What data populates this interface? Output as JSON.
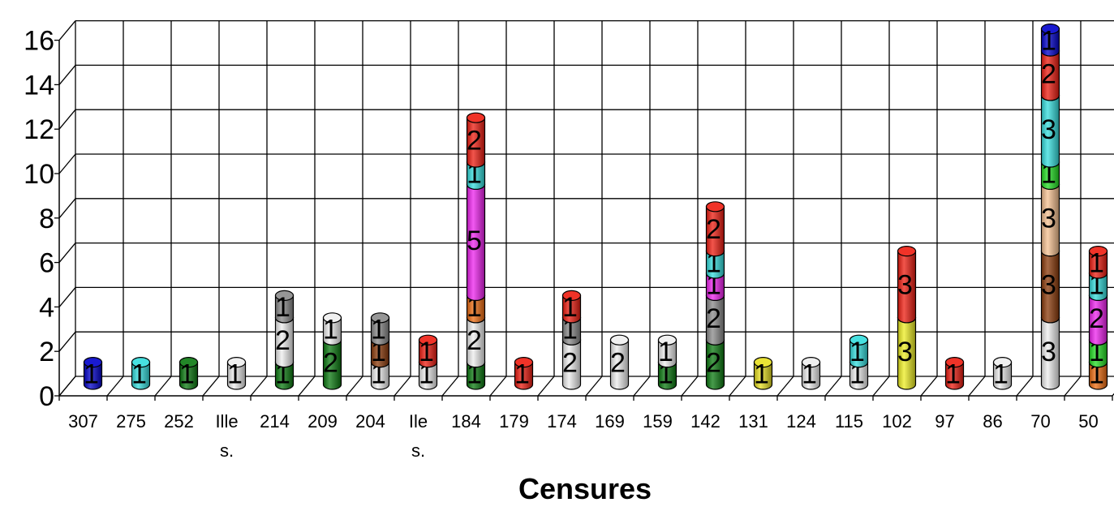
{
  "chart_data": {
    "type": "bar",
    "stacked": true,
    "style": "3d-cylinder",
    "title": "",
    "xlabel": "Censures",
    "ylabel": "",
    "ylim": [
      0,
      16
    ],
    "yticks": [
      0,
      2,
      4,
      6,
      8,
      10,
      12,
      14,
      16
    ],
    "grid": true,
    "legend": "none",
    "categories": [
      {
        "label": "307"
      },
      {
        "label": "275"
      },
      {
        "label": "252"
      },
      {
        "label": "Ille",
        "label2": "s."
      },
      {
        "label": "214"
      },
      {
        "label": "209"
      },
      {
        "label": "204"
      },
      {
        "label": "Ile",
        "label2": "s."
      },
      {
        "label": "184"
      },
      {
        "label": "179"
      },
      {
        "label": "174"
      },
      {
        "label": "169"
      },
      {
        "label": "159"
      },
      {
        "label": "142"
      },
      {
        "label": "131"
      },
      {
        "label": "124"
      },
      {
        "label": "115"
      },
      {
        "label": "102"
      },
      {
        "label": "97"
      },
      {
        "label": "86"
      },
      {
        "label": "70"
      },
      {
        "label": "50"
      }
    ],
    "stacks": [
      [
        {
          "value": 1,
          "color": "#0000cc"
        }
      ],
      [
        {
          "value": 1,
          "color": "#33dddd"
        }
      ],
      [
        {
          "value": 1,
          "color": "#0b7a10"
        }
      ],
      [
        {
          "value": 1,
          "color": "#eeeeee"
        }
      ],
      [
        {
          "value": 1,
          "color": "#0b7a10"
        },
        {
          "value": 2,
          "color": "#eeeeee"
        },
        {
          "value": 1,
          "color": "#8a8a8a"
        }
      ],
      [
        {
          "value": 2,
          "color": "#0b7a10"
        },
        {
          "value": 1,
          "color": "#eeeeee"
        }
      ],
      [
        {
          "value": 1,
          "color": "#eeeeee"
        },
        {
          "value": 1,
          "color": "#8b3a0a"
        },
        {
          "value": 1,
          "color": "#8a8a8a"
        }
      ],
      [
        {
          "value": 1,
          "color": "#eeeeee"
        },
        {
          "value": 1,
          "color": "#ee1c10"
        }
      ],
      [
        {
          "value": 1,
          "color": "#0b7a10"
        },
        {
          "value": 2,
          "color": "#eeeeee"
        },
        {
          "value": 1,
          "color": "#ee6c10"
        },
        {
          "value": 5,
          "color": "#ee22ee"
        },
        {
          "value": 1,
          "color": "#33dddd"
        },
        {
          "value": 2,
          "color": "#ee1c10"
        }
      ],
      [
        {
          "value": 1,
          "color": "#ee1c10"
        }
      ],
      [
        {
          "value": 2,
          "color": "#eeeeee"
        },
        {
          "value": 1,
          "color": "#8a8a8a"
        },
        {
          "value": 1,
          "color": "#ee1c10"
        }
      ],
      [
        {
          "value": 2,
          "color": "#eeeeee"
        }
      ],
      [
        {
          "value": 1,
          "color": "#0b7a10"
        },
        {
          "value": 1,
          "color": "#eeeeee"
        }
      ],
      [
        {
          "value": 2,
          "color": "#0b7a10"
        },
        {
          "value": 2,
          "color": "#8a8a8a"
        },
        {
          "value": 1,
          "color": "#ee22ee"
        },
        {
          "value": 1,
          "color": "#33dddd"
        },
        {
          "value": 2,
          "color": "#ee1c10"
        }
      ],
      [
        {
          "value": 1,
          "color": "#e8e020"
        }
      ],
      [
        {
          "value": 1,
          "color": "#eeeeee"
        }
      ],
      [
        {
          "value": 1,
          "color": "#eeeeee"
        },
        {
          "value": 1,
          "color": "#33dddd"
        }
      ],
      [
        {
          "value": 3,
          "color": "#eeee22"
        },
        {
          "value": 3,
          "color": "#ee1c10"
        }
      ],
      [
        {
          "value": 1,
          "color": "#ee1c10"
        }
      ],
      [
        {
          "value": 1,
          "color": "#eeeeee"
        }
      ],
      [
        {
          "value": 3,
          "color": "#eeeeee"
        },
        {
          "value": 3,
          "color": "#8b3a0a"
        },
        {
          "value": 3,
          "color": "#f5c090"
        },
        {
          "value": 1,
          "color": "#22dd22"
        },
        {
          "value": 3,
          "color": "#33dddd"
        },
        {
          "value": 2,
          "color": "#ee1c10"
        },
        {
          "value": 1,
          "color": "#0000cc"
        }
      ],
      [
        {
          "value": 1,
          "color": "#ee6c10"
        },
        {
          "value": 1,
          "color": "#22dd22"
        },
        {
          "value": 2,
          "color": "#ee22ee"
        },
        {
          "value": 1,
          "color": "#33dddd"
        },
        {
          "value": 1,
          "color": "#ee1c10"
        }
      ]
    ]
  }
}
